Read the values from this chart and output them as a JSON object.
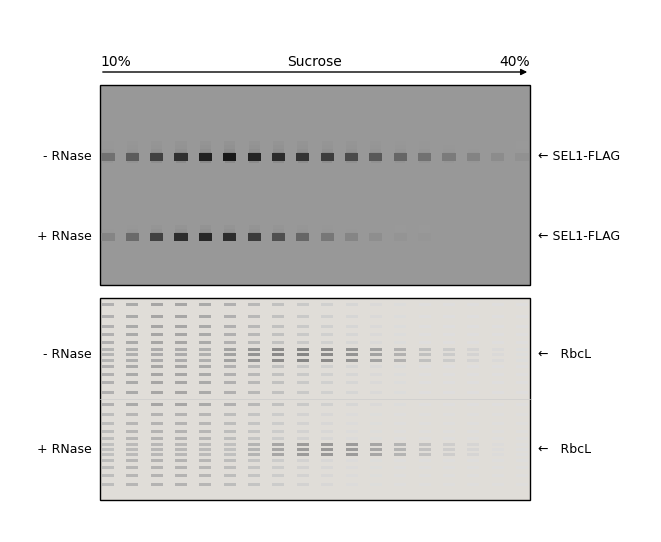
{
  "background_color": "#ffffff",
  "arrow_label": "Sucrose",
  "arrow_left_label": "10%",
  "arrow_right_label": "40%",
  "top_panel": {
    "bg_color": "#989898",
    "row1_label": "- RNase",
    "row2_label": "+ RNase",
    "right_label1": "← SEL1-FLAG",
    "right_label2": "← SEL1-FLAG"
  },
  "bottom_panel": {
    "bg_color": "#e0ddd8",
    "row1_label": "- RNase",
    "row2_label": "+ RNase",
    "right_label1": "←   RbcL",
    "right_label2": "←   RbcL"
  },
  "font_size_labels": 9,
  "font_size_arrow_labels": 10
}
